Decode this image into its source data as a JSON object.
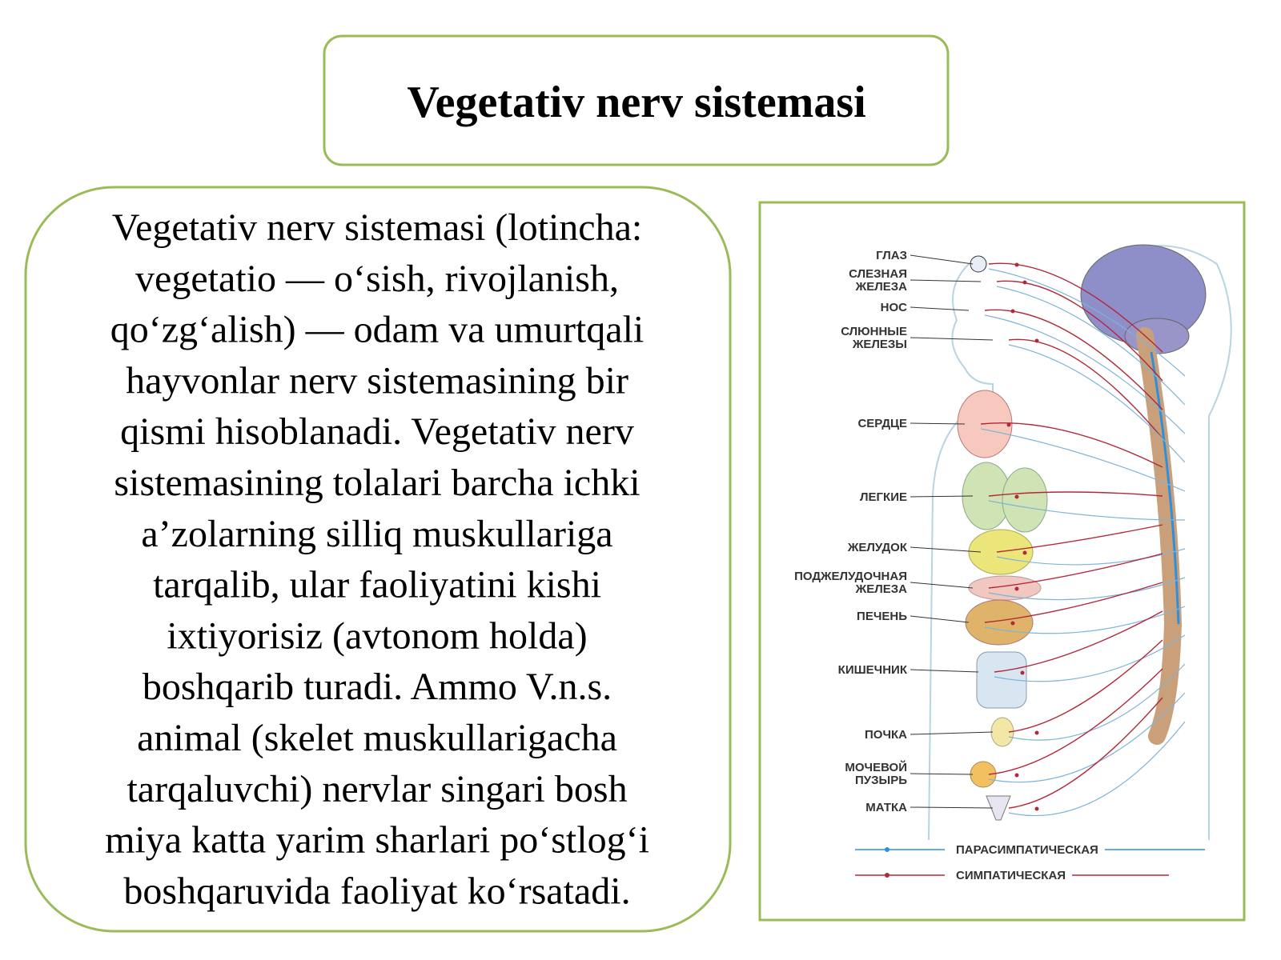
{
  "header": {
    "title": "Vegetativ nerv sistemasi"
  },
  "paragraph": {
    "lines": [
      "Vegetativ nerv sistemasi (lotincha:",
      "vegetatio — o‘sish, rivojlanish,",
      "qo‘zg‘alish) — odam va umurtqali",
      "hayvonlar nerv sistemasining bir",
      "qismi hisoblanadi.  Vegetativ nerv",
      "sistemasining  tolalari barcha ichki",
      "a’zolarning silliq muskullariga",
      "tarqalib, ular faoliyatini kishi",
      "ixtiyorisiz (avtonom holda)",
      "boshqarib turadi. Ammo V.n.s.",
      "animal (skelet muskullarigacha",
      "tarqaluvchi) nervlar singari bosh",
      "miya katta yarim sharlari po‘stlog‘i",
      "boshqaruvida faoliyat ko‘rsatadi."
    ]
  },
  "diagram": {
    "labels": [
      [
        "ГЛАЗ"
      ],
      [
        "СЛЕЗНАЯ",
        "ЖЕЛЕЗА"
      ],
      [
        "НОС"
      ],
      [
        "СЛЮННЫЕ",
        "ЖЕЛЕЗЫ"
      ],
      [
        "СЕРДЦЕ"
      ],
      [
        "ЛЕГКИЕ"
      ],
      [
        "ЖЕЛУДОК"
      ],
      [
        "ПОДЖЕЛУДОЧНАЯ",
        "ЖЕЛЕЗА"
      ],
      [
        "ПЕЧЕНЬ"
      ],
      [
        "КИШЕЧНИК"
      ],
      [
        "ПОЧКА"
      ],
      [
        "МОЧЕВОЙ",
        "ПУЗЫРЬ"
      ],
      [
        "МАТКА"
      ]
    ],
    "legend": [
      "ПАРАСИМПАТИЧЕСКАЯ",
      "СИМПАТИЧЕСКАЯ"
    ]
  }
}
